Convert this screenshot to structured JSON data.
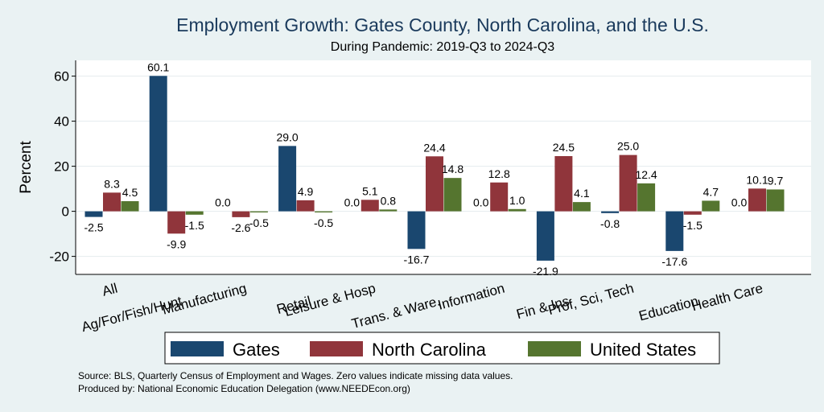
{
  "chart_data": {
    "type": "bar",
    "title": "Employment Growth: Gates County, North Carolina, and the U.S.",
    "subtitle": "During Pandemic: 2019-Q3 to 2024-Q3",
    "ylabel": "Percent",
    "xlabel": "",
    "ylim": [
      -28,
      67
    ],
    "yticks": [
      -20,
      0,
      20,
      40,
      60
    ],
    "grid": true,
    "legend_position": "bottom",
    "categories": [
      "All",
      "Ag/For/Fish/Hunt",
      "Manufacturing",
      "Retail",
      "Leisure & Hosp",
      "Trans. & Ware.",
      "Information",
      "Fin & Ins",
      "Prof, Sci, Tech",
      "Education",
      "Health Care"
    ],
    "series": [
      {
        "name": "Gates",
        "color": "#1a476f",
        "values": [
          -2.5,
          60.1,
          0.0,
          29.0,
          0.0,
          -16.7,
          0.0,
          -21.9,
          -0.8,
          -17.6,
          0.0
        ],
        "labels": [
          "-2.5",
          "60.1",
          "0.0",
          "29.0",
          "0.0",
          "-16.7",
          "0.0",
          "-21.9",
          "-0.8",
          "-17.6",
          "0.0"
        ]
      },
      {
        "name": "North Carolina",
        "color": "#90353b",
        "values": [
          8.3,
          -9.9,
          -2.6,
          4.9,
          5.1,
          24.4,
          12.8,
          24.5,
          25.0,
          -1.5,
          10.1
        ],
        "labels": [
          "8.3",
          "-9.9",
          "-2.6",
          "4.9",
          "5.1",
          "24.4",
          "12.8",
          "24.5",
          "25.0",
          "-1.5",
          "10.1"
        ]
      },
      {
        "name": "United States",
        "color": "#55752f",
        "values": [
          4.5,
          -1.5,
          -0.5,
          -0.5,
          0.8,
          14.8,
          1.0,
          4.1,
          12.4,
          4.7,
          9.7
        ],
        "labels": [
          "4.5",
          "-1.5",
          "-0.5",
          "-0.5",
          "0.8",
          "14.8",
          "1.0",
          "4.1",
          "12.4",
          "4.7",
          "9.7"
        ]
      }
    ]
  },
  "footer": {
    "source": "Source: BLS, Quarterly Census of Employment and Wages. Zero values indicate missing data values.",
    "produced_by": "Produced by: National Economic Education Delegation (www.NEEDEcon.org)"
  }
}
